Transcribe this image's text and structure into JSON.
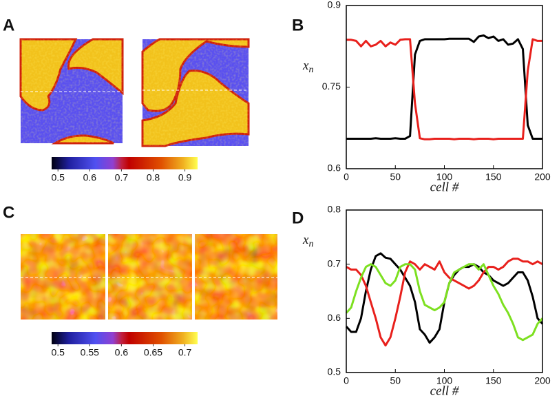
{
  "chart_data": [
    {
      "type": "colorbar",
      "panel": "A",
      "lim": [
        0.48,
        0.94
      ],
      "ticks": [
        0.5,
        0.6,
        0.7,
        0.8,
        0.9
      ]
    },
    {
      "type": "line",
      "panel": "B",
      "xlabel": "cell #",
      "ylabel": "x",
      "ylabel_sub": "n",
      "xlim": [
        0,
        200
      ],
      "xticks": [
        0,
        50,
        100,
        150,
        200
      ],
      "ylim": [
        0.6,
        0.9
      ],
      "yticks": [
        0.6,
        0.75,
        0.9
      ],
      "x": [
        0,
        5,
        10,
        15,
        20,
        25,
        30,
        35,
        40,
        45,
        50,
        55,
        60,
        65,
        70,
        75,
        80,
        85,
        90,
        95,
        100,
        105,
        110,
        115,
        120,
        125,
        130,
        135,
        140,
        145,
        150,
        155,
        160,
        165,
        170,
        175,
        180,
        185,
        190,
        195,
        200
      ],
      "series": [
        {
          "color": "#000000",
          "values": [
            0.655,
            0.655,
            0.655,
            0.655,
            0.655,
            0.655,
            0.656,
            0.655,
            0.655,
            0.655,
            0.656,
            0.655,
            0.655,
            0.66,
            0.81,
            0.835,
            0.838,
            0.838,
            0.838,
            0.838,
            0.838,
            0.839,
            0.839,
            0.839,
            0.839,
            0.839,
            0.833,
            0.843,
            0.845,
            0.84,
            0.843,
            0.835,
            0.838,
            0.828,
            0.83,
            0.838,
            0.82,
            0.68,
            0.655,
            0.655,
            0.655
          ]
        },
        {
          "color": "#e8201c",
          "values": [
            0.837,
            0.837,
            0.835,
            0.825,
            0.835,
            0.825,
            0.828,
            0.835,
            0.825,
            0.832,
            0.828,
            0.837,
            0.838,
            0.838,
            0.72,
            0.656,
            0.654,
            0.654,
            0.655,
            0.655,
            0.655,
            0.655,
            0.654,
            0.655,
            0.655,
            0.655,
            0.654,
            0.655,
            0.655,
            0.655,
            0.654,
            0.655,
            0.655,
            0.655,
            0.655,
            0.655,
            0.655,
            0.78,
            0.838,
            0.835,
            0.835
          ]
        }
      ]
    },
    {
      "type": "colorbar",
      "panel": "C",
      "lim": [
        0.49,
        0.72
      ],
      "ticks": [
        0.5,
        0.55,
        0.6,
        0.65,
        0.7
      ]
    },
    {
      "type": "line",
      "panel": "D",
      "xlabel": "cell #",
      "ylabel": "x",
      "ylabel_sub": "n",
      "xlim": [
        0,
        200
      ],
      "xticks": [
        0,
        50,
        100,
        150,
        200
      ],
      "ylim": [
        0.5,
        0.8
      ],
      "yticks": [
        0.5,
        0.6,
        0.7,
        0.8
      ],
      "x": [
        0,
        5,
        10,
        15,
        20,
        25,
        30,
        35,
        40,
        45,
        50,
        55,
        60,
        65,
        70,
        75,
        80,
        85,
        90,
        95,
        100,
        105,
        110,
        115,
        120,
        125,
        130,
        135,
        140,
        145,
        150,
        155,
        160,
        165,
        170,
        175,
        180,
        185,
        190,
        195,
        200
      ],
      "series": [
        {
          "color": "#000000",
          "values": [
            0.585,
            0.575,
            0.575,
            0.6,
            0.65,
            0.69,
            0.715,
            0.72,
            0.712,
            0.71,
            0.7,
            0.69,
            0.675,
            0.66,
            0.63,
            0.58,
            0.57,
            0.555,
            0.565,
            0.58,
            0.63,
            0.665,
            0.68,
            0.69,
            0.695,
            0.695,
            0.7,
            0.695,
            0.685,
            0.68,
            0.67,
            0.665,
            0.66,
            0.665,
            0.675,
            0.685,
            0.685,
            0.67,
            0.64,
            0.6,
            0.59
          ]
        },
        {
          "color": "#e8201c",
          "values": [
            0.695,
            0.69,
            0.69,
            0.68,
            0.66,
            0.63,
            0.6,
            0.565,
            0.55,
            0.565,
            0.6,
            0.64,
            0.685,
            0.705,
            0.7,
            0.69,
            0.7,
            0.695,
            0.69,
            0.705,
            0.685,
            0.675,
            0.67,
            0.665,
            0.66,
            0.655,
            0.66,
            0.67,
            0.685,
            0.695,
            0.695,
            0.69,
            0.695,
            0.705,
            0.71,
            0.71,
            0.705,
            0.705,
            0.7,
            0.705,
            0.7
          ]
        },
        {
          "color": "#7de020",
          "values": [
            0.61,
            0.62,
            0.65,
            0.675,
            0.695,
            0.7,
            0.695,
            0.68,
            0.665,
            0.66,
            0.67,
            0.695,
            0.7,
            0.7,
            0.69,
            0.65,
            0.625,
            0.62,
            0.615,
            0.62,
            0.63,
            0.665,
            0.685,
            0.69,
            0.695,
            0.7,
            0.7,
            0.69,
            0.7,
            0.68,
            0.66,
            0.645,
            0.625,
            0.61,
            0.59,
            0.565,
            0.56,
            0.565,
            0.57,
            0.59,
            0.6
          ]
        }
      ]
    }
  ]
}
